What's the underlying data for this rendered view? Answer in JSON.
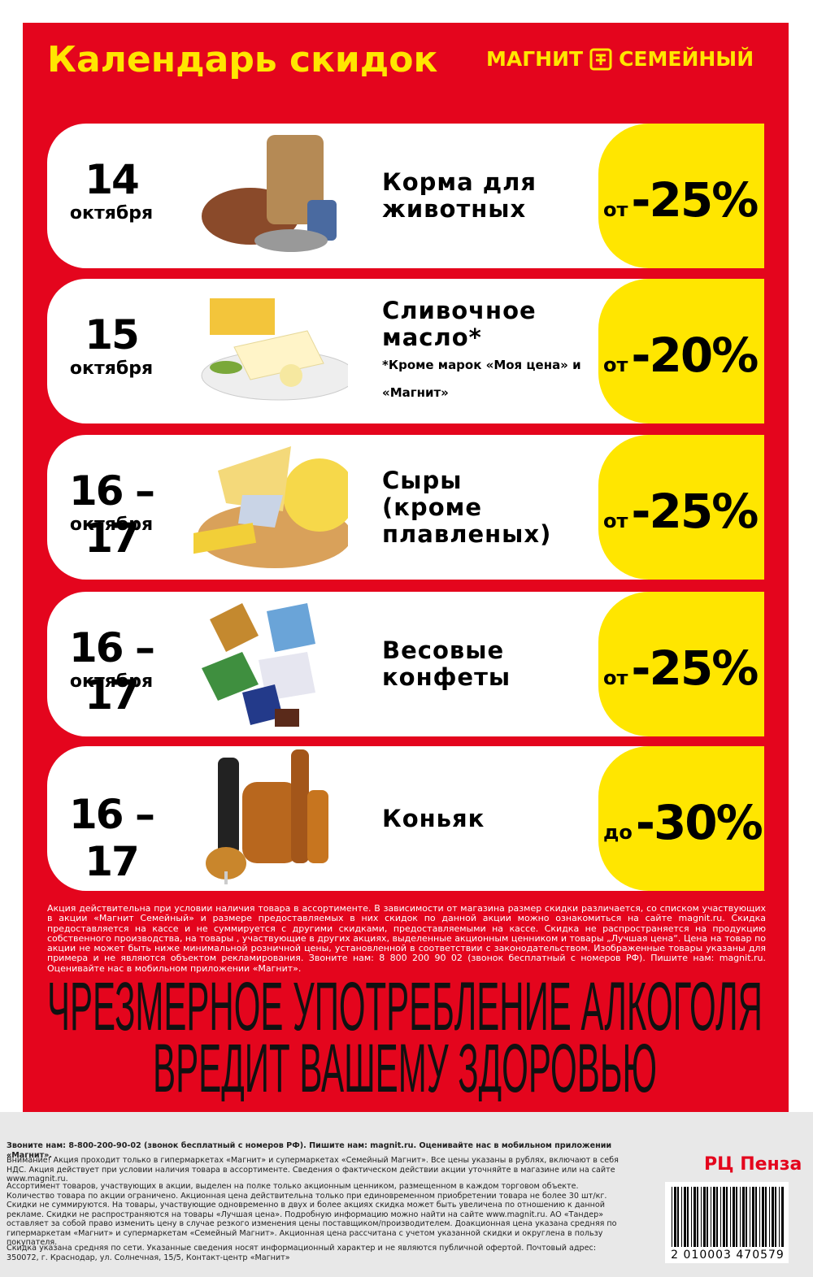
{
  "header": {
    "title": "Календарь скидок",
    "brand": [
      "МАГНИТ",
      "СЕМЕЙНЫЙ"
    ]
  },
  "rows": [
    {
      "day": "14",
      "month": "октября",
      "name": [
        "Корма для",
        "животных"
      ],
      "prefix": "от",
      "discount": "-25%"
    },
    {
      "day": "15",
      "month": "октября",
      "name": [
        "Сливочное",
        "масло*"
      ],
      "note": [
        "*Кроме марок «Моя цена» и",
        "«Магнит»"
      ],
      "prefix": "от",
      "discount": "-20%"
    },
    {
      "day": "16 –17",
      "month": "октября",
      "name": [
        "Сыры",
        "(кроме",
        "плавленых)"
      ],
      "prefix": "от",
      "discount": "-25%"
    },
    {
      "day": "16 –17",
      "month": "октября",
      "name": [
        "Весовые",
        "конфеты"
      ],
      "prefix": "от",
      "discount": "-25%"
    },
    {
      "day": "16 –17",
      "name": [
        "Коньяк"
      ],
      "prefix": "до",
      "discount": "-30%"
    }
  ],
  "fine_print": "Акция действительна при условии наличия товара в ассортименте. В зависимости от магазина размер скидки различается, со списком участвующих в акции «Магнит Семейный» и размере предоставляемых в них скидок по данной акции можно ознакомиться на сайте magnit.ru. Скидка предоставляется на кассе и не суммируется с другими скидками, предоставляемыми на кассе. Скидка не распространяется на продукцию собственного производства, на товары , участвующие в других акциях, выделенные акционным ценником и товары „Лучшая цена“. Цена на товар по акции не может быть ниже минимальной розничной цены, установленной в соответствии с законодательством. Изображенные товары указаны для примера и не являются объектом рекламирования. Звоните нам: 8 800 200 90 02 (звонок бесплатный с номеров РФ). Пишите нам: magnit.ru. Оценивайте нас в мобильном приложении «Магнит».",
  "warning": [
    "ЧРЕЗМЕРНОЕ УПОТРЕБЛЕНИЕ АЛКОГОЛЯ",
    "ВРЕДИТ ВАШЕМУ ЗДОРОВЬЮ"
  ],
  "footer": {
    "contact": "Звоните нам: 8-800-200-90-02 (звонок бесплатный с номеров РФ). Пишите нам: magnit.ru. Оценивайте нас в мобильном приложении «Магнит».",
    "notice": "Внимание! Акция проходит только в гипермаркетах «Магнит» и супермаркетах «Семейный Магнит». Все цены указаны в рублях, включают в себя НДС. Акция действует при условии наличия товара в ассортименте. Сведения о фактическом действии акции уточняйте в магазине или на сайте www.magnit.ru.",
    "terms": "Ассортимент товаров, участвующих в акции, выделен на полке только акционным ценником, размещенном в каждом торговом объекте. Количество товара по акции ограничено. Акционная цена действительна только при единовременном приобретении товара не более 30 шт/кг. Скидки не суммируются. На товары, участвующие одновременно в двух и более акциях скидка может быть увеличена по отношению к данной рекламе. Скидки не распространяются на товары «Лучшая цена». Подробную информацию можно найти на сайте www.magnit.ru. АО «Тандер» оставляет за собой право изменить цену в случае резкого изменения цены поставщиком/производителем. Доакционная цена указана средняя по гипермаркетам «Магнит» и супермаркетам «Семейный Магнит». Акционная цена рассчитана с учетом указанной скидки и округлена в пользу покупателя.",
    "disclaimer": "Скидка указана средняя по сети. Указанные сведения носят информационный характер и не являются публичной офертой. Почтовый адрес: 350072, г. Краснодар, ул. Солнечная, 15/5, Контакт-центр «Магнит»",
    "region": "РЦ Пенза",
    "barcode": "2 010003 470579"
  }
}
